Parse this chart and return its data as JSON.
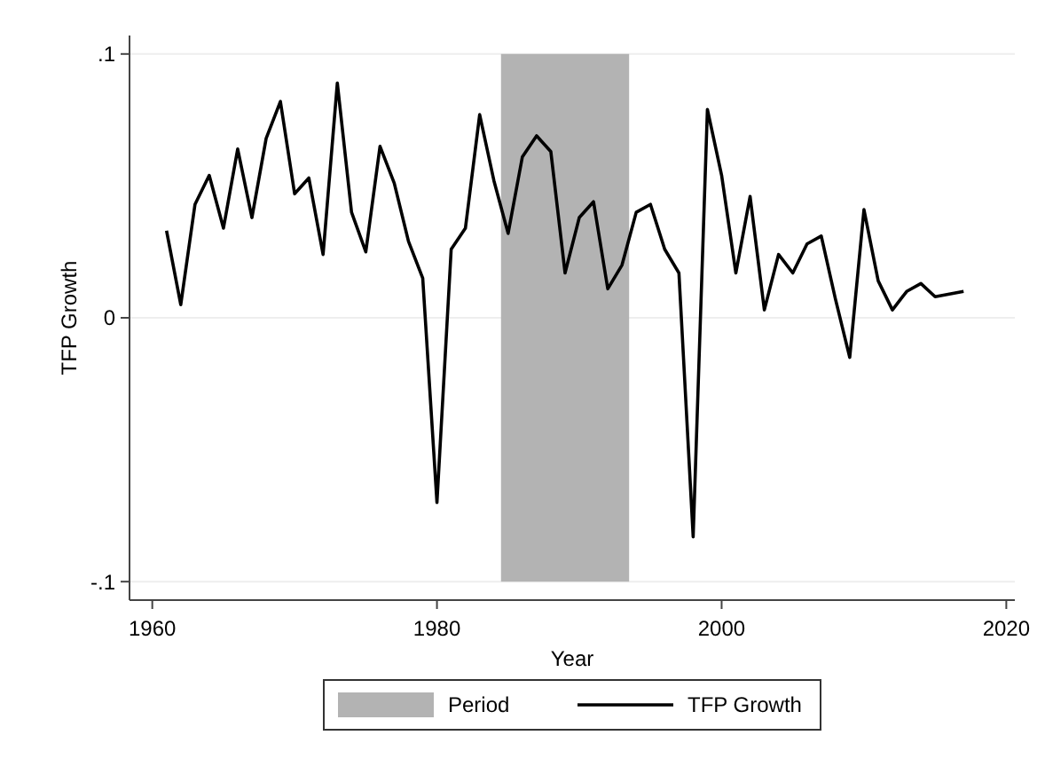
{
  "chart_data": {
    "type": "line",
    "xlabel": "Year",
    "ylabel": "TFP Growth",
    "x": [
      1961,
      1962,
      1963,
      1964,
      1965,
      1966,
      1967,
      1968,
      1969,
      1970,
      1971,
      1972,
      1973,
      1974,
      1975,
      1976,
      1977,
      1978,
      1979,
      1980,
      1981,
      1982,
      1983,
      1984,
      1985,
      1986,
      1987,
      1988,
      1989,
      1990,
      1991,
      1992,
      1993,
      1994,
      1995,
      1996,
      1997,
      1998,
      1999,
      2000,
      2001,
      2002,
      2003,
      2004,
      2005,
      2006,
      2007,
      2008,
      2009,
      2010,
      2011,
      2012,
      2013,
      2014,
      2015,
      2016,
      2017
    ],
    "series": [
      {
        "name": "TFP Growth",
        "color": "#000000",
        "values": [
          0.033,
          0.005,
          0.043,
          0.054,
          0.034,
          0.064,
          0.038,
          0.068,
          0.082,
          0.047,
          0.053,
          0.024,
          0.089,
          0.04,
          0.025,
          0.065,
          0.051,
          0.029,
          0.015,
          -0.07,
          0.026,
          0.034,
          0.077,
          0.052,
          0.032,
          0.061,
          0.069,
          0.063,
          0.017,
          0.038,
          0.044,
          0.011,
          0.02,
          0.04,
          0.043,
          0.026,
          0.017,
          -0.083,
          0.079,
          0.054,
          0.017,
          0.046,
          0.003,
          0.024,
          0.017,
          0.028,
          0.031,
          0.007,
          -0.015,
          0.041,
          0.014,
          0.003,
          0.01,
          0.013,
          0.008,
          0.009,
          0.01
        ]
      }
    ],
    "bands": [
      {
        "axis": "x",
        "from": 1984.5,
        "to": 1993.5,
        "label": "Period",
        "color": "#b3b3b3"
      }
    ],
    "xlim": [
      1958.4,
      2020.6
    ],
    "xticks": [
      1960,
      1980,
      2000,
      2020
    ],
    "ylim": [
      -0.107,
      0.107
    ],
    "yticks": [
      {
        "value": -0.1,
        "label": "-.1"
      },
      {
        "value": 0,
        "label": "0"
      },
      {
        "value": 0.1,
        "label": ".1"
      }
    ],
    "grid": "y",
    "legend": "bottom"
  }
}
